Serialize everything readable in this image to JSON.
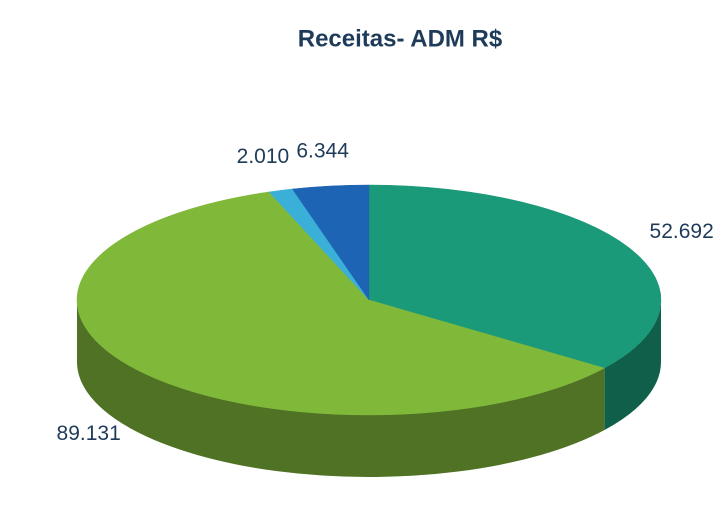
{
  "chart_data": {
    "type": "pie",
    "title": "Receitas- ADM R$",
    "values": [
      52692,
      89131,
      2010,
      6344
    ],
    "value_labels": [
      "52.692",
      "89.131",
      "2.010",
      "6.344"
    ],
    "colors": [
      "#1a9a78",
      "#80b83a",
      "#3ab0d8",
      "#1e64b4"
    ]
  }
}
